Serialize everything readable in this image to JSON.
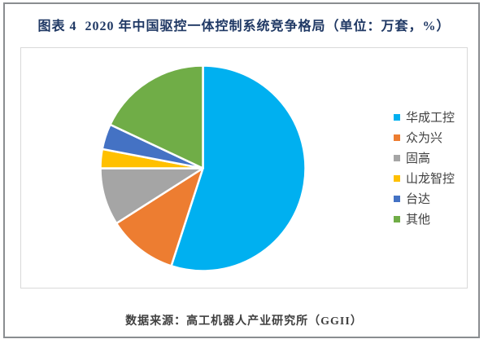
{
  "title": "图表 4  2020 年中国驱控一体控制系统竞争格局（单位：万套，%）",
  "source": "数据来源：高工机器人产业研究所（GGII）",
  "colors": {
    "title_text": "#1f3864",
    "source_text": "#404040",
    "legend_text": "#404040",
    "outer_frame": "#8a8d90",
    "plot_border": "#d9d9d9",
    "slice_gap": "#ffffff"
  },
  "chart_data": {
    "type": "pie",
    "title": "图表 4  2020 年中国驱控一体控制系统竞争格局（单位：万套，%）",
    "unit": "万套，%",
    "categories": [
      "华成工控",
      "众为兴",
      "固高",
      "山龙智控",
      "台达",
      "其他"
    ],
    "values": [
      55,
      11,
      9,
      3,
      4,
      18
    ],
    "slice_colors": [
      "#00b0f0",
      "#ed7d31",
      "#a5a5a5",
      "#ffc000",
      "#4472c4",
      "#70ad47"
    ],
    "start_angle_deg": 0,
    "direction": "clockwise",
    "legend_position": "right",
    "data_labels": false,
    "source": "数据来源：高工机器人产业研究所（GGII）"
  }
}
